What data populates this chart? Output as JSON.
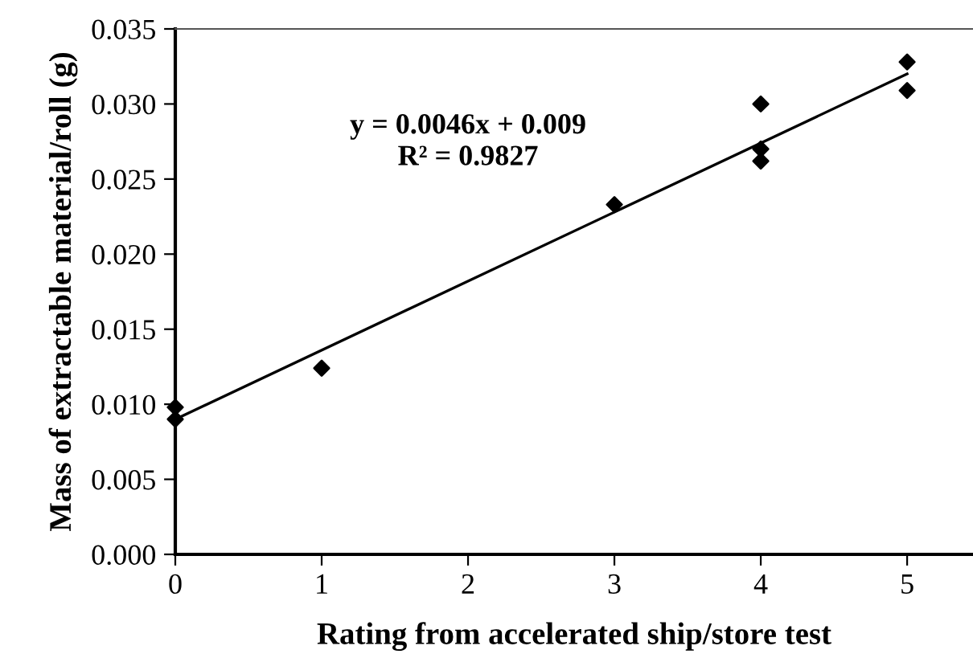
{
  "chart_data": {
    "type": "scatter",
    "xlabel": "Rating from accelerated ship/store test",
    "ylabel": "Mass of extractable material/roll (g)",
    "annotations": [
      "y = 0.0046x + 0.009",
      "R² = 0.9827"
    ],
    "series": [
      {
        "color": "#000000",
        "marker": "diamond",
        "x": [
          0,
          0,
          1,
          3,
          4,
          4,
          4,
          5,
          5
        ],
        "values": [
          0.0098,
          0.009,
          0.0124,
          0.0233,
          0.03,
          0.027,
          0.0262,
          0.0328,
          0.0309
        ]
      },
      {
        "type": "line",
        "color": "#000000",
        "marker": "none",
        "line_style": "solid",
        "x": [
          0,
          5
        ],
        "values": [
          0.009,
          0.032
        ]
      }
    ],
    "xlim": [
      0,
      5.45
    ],
    "xticks": [
      0,
      1,
      2,
      3,
      4,
      5
    ],
    "ylim": [
      0,
      0.035
    ],
    "yticks": [
      {
        "value": 0,
        "label": "0.000"
      },
      {
        "value": 0.005,
        "label": "0.005"
      },
      {
        "value": 0.01,
        "label": "0.010"
      },
      {
        "value": 0.015,
        "label": "0.015"
      },
      {
        "value": 0.02,
        "label": "0.020"
      },
      {
        "value": 0.025,
        "label": "0.025"
      },
      {
        "value": 0.03,
        "label": "0.030"
      },
      {
        "value": 0.035,
        "label": "0.035"
      }
    ],
    "grid": false,
    "legend": false
  }
}
